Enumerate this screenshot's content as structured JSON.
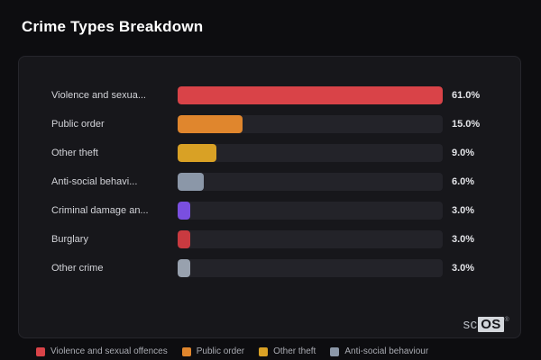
{
  "page": {
    "title": "Crime Types Breakdown",
    "watermark": {
      "prefix": "sc",
      "box": "OS",
      "reg": "®"
    }
  },
  "chart_data": {
    "type": "bar",
    "orientation": "horizontal",
    "title": "Crime Types Breakdown",
    "categories": [
      "Violence and sexual offences",
      "Public order",
      "Other theft",
      "Anti-social behaviour",
      "Criminal damage and arson",
      "Burglary",
      "Other crime"
    ],
    "display_labels": [
      "Violence and sexua...",
      "Public order",
      "Other theft",
      "Anti-social behavi...",
      "Criminal damage an...",
      "Burglary",
      "Other crime"
    ],
    "values": [
      61.0,
      15.0,
      9.0,
      6.0,
      3.0,
      3.0,
      3.0
    ],
    "value_labels": [
      "61.0%",
      "15.0%",
      "9.0%",
      "6.0%",
      "3.0%",
      "3.0%",
      "3.0%"
    ],
    "unit": "%",
    "max_value": 61.0,
    "colors": [
      "#d94348",
      "#e0862d",
      "#d9a125",
      "#8b97a8",
      "#7a4fe0",
      "#c93a40",
      "#98a1ae"
    ],
    "track_color": "#232329",
    "grid": false,
    "legend_position": "bottom",
    "legend": [
      {
        "label": "Violence and sexual offences",
        "color": "#d94348"
      },
      {
        "label": "Public order",
        "color": "#e0862d"
      },
      {
        "label": "Other theft",
        "color": "#d9a125"
      },
      {
        "label": "Anti-social behaviour",
        "color": "#8b97a8"
      }
    ]
  }
}
